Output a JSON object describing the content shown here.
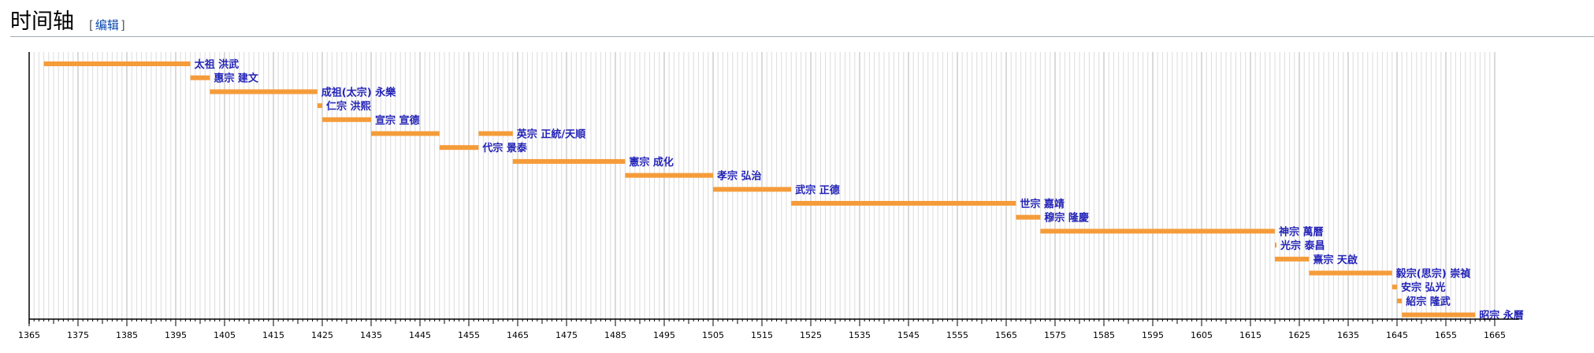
{
  "header": {
    "title": "时间轴",
    "bracket_open": "[",
    "edit_label": "编辑",
    "bracket_close": "]"
  },
  "colors": {
    "bar": "#f59c3a",
    "label": "#2323b8",
    "grid": "#dcdcdc",
    "axis": "#000000"
  },
  "chart_data": {
    "type": "timeline",
    "x_range": [
      1365,
      1670
    ],
    "x_ticks": [
      1365,
      1375,
      1385,
      1395,
      1405,
      1415,
      1425,
      1435,
      1445,
      1455,
      1465,
      1475,
      1485,
      1495,
      1505,
      1515,
      1525,
      1535,
      1545,
      1555,
      1565,
      1575,
      1585,
      1595,
      1605,
      1615,
      1625,
      1635,
      1645,
      1655,
      1665
    ],
    "grid": true,
    "entries": [
      {
        "label": "太祖 洪武",
        "start": 1368,
        "end": 1398
      },
      {
        "label": "惠宗 建文",
        "start": 1398,
        "end": 1402
      },
      {
        "label": "成祖(太宗) 永樂",
        "start": 1402,
        "end": 1424
      },
      {
        "label": "仁宗 洪熙",
        "start": 1424,
        "end": 1425
      },
      {
        "label": "宣宗 宣德",
        "start": 1425,
        "end": 1435
      },
      {
        "label": "英宗 正統/天順",
        "start": 1435,
        "end": 1449,
        "start2": 1457,
        "end2": 1464
      },
      {
        "label": "代宗 景泰",
        "start": 1449,
        "end": 1457
      },
      {
        "label": "憲宗 成化",
        "start": 1464,
        "end": 1487
      },
      {
        "label": "孝宗 弘治",
        "start": 1487,
        "end": 1505
      },
      {
        "label": "武宗 正德",
        "start": 1505,
        "end": 1521
      },
      {
        "label": "世宗 嘉靖",
        "start": 1521,
        "end": 1567
      },
      {
        "label": "穆宗 隆慶",
        "start": 1567,
        "end": 1572
      },
      {
        "label": "神宗 萬曆",
        "start": 1572,
        "end": 1620
      },
      {
        "label": "光宗 泰昌",
        "start": 1620,
        "end": 1620.1
      },
      {
        "label": "熹宗 天啟",
        "start": 1620,
        "end": 1627
      },
      {
        "label": "毅宗(思宗) 崇禎",
        "start": 1627,
        "end": 1644
      },
      {
        "label": "安宗 弘光",
        "start": 1644,
        "end": 1645
      },
      {
        "label": "紹宗 隆武",
        "start": 1645,
        "end": 1646
      },
      {
        "label": "昭宗 永曆",
        "start": 1646,
        "end": 1661
      }
    ]
  }
}
